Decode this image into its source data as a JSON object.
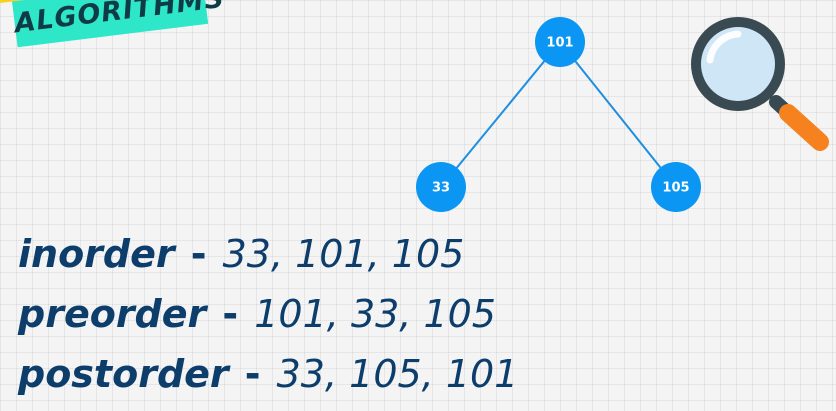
{
  "badge": {
    "label": "ALGORITHMS",
    "colors": {
      "top": "#f7d21c",
      "bottom": "#2ee6c8",
      "text": "#0f3b46"
    }
  },
  "tree": {
    "node_color": "#0a96f2",
    "edge_color": "#1e8fe0",
    "root": {
      "label": "101"
    },
    "left": {
      "label": "33"
    },
    "right": {
      "label": "105"
    }
  },
  "magnifier": {
    "icon": "magnifying-glass-icon",
    "colors": {
      "rim": "#3a4a52",
      "lens": "#cfe6f7",
      "handle": "#f5821f"
    }
  },
  "traversals": [
    {
      "name": "inorder",
      "separator": "-",
      "sequence": "33, 101, 105"
    },
    {
      "name": "preorder",
      "separator": "-",
      "sequence": "101, 33, 105"
    },
    {
      "name": "postorder",
      "separator": "-",
      "sequence": "33, 105, 101"
    }
  ],
  "text_color": "#0c3d6b"
}
